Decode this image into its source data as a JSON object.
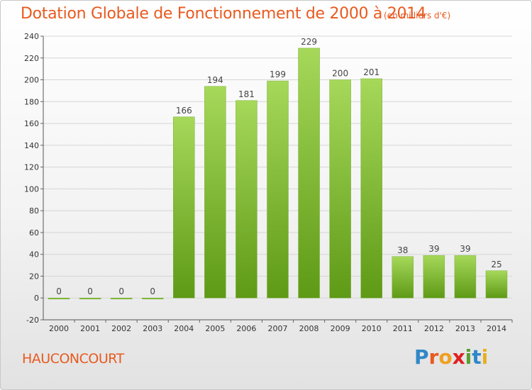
{
  "header": {
    "title": "Dotation Globale de Fonctionnement de 2000 à 2014",
    "unit": "(en milliers d'€)"
  },
  "footer": {
    "commune": "HAUCONCOURT"
  },
  "logo": {
    "text": "Proxiti",
    "letters": [
      {
        "ch": "P",
        "color": "#2f88c8"
      },
      {
        "ch": "r",
        "color": "#e85a20"
      },
      {
        "ch": "o",
        "color": "#f0a020"
      },
      {
        "ch": "x",
        "color": "#e02020"
      },
      {
        "ch": "i",
        "color": "#58a030"
      },
      {
        "ch": "t",
        "color": "#2f88c8"
      },
      {
        "ch": "i",
        "color": "#e8b020"
      }
    ]
  },
  "colors": {
    "bar_top": "#a6d85a",
    "bar_bottom": "#5e9a16",
    "title": "#e85a20",
    "grid": "#d6d6d6"
  },
  "chart_data": {
    "type": "bar",
    "categories": [
      "2000",
      "2001",
      "2002",
      "2003",
      "2004",
      "2005",
      "2006",
      "2007",
      "2008",
      "2009",
      "2010",
      "2011",
      "2012",
      "2013",
      "2014"
    ],
    "values": [
      0,
      0,
      0,
      0,
      166,
      194,
      181,
      199,
      229,
      200,
      201,
      38,
      39,
      39,
      25
    ],
    "data_labels": [
      "0",
      "0",
      "0",
      "0",
      "166",
      "194",
      "181",
      "199",
      "229",
      "200",
      "201",
      "38",
      "39",
      "39",
      "25"
    ],
    "yticks": [
      -20,
      0,
      20,
      40,
      60,
      80,
      100,
      120,
      140,
      160,
      180,
      200,
      220,
      240
    ],
    "ylim": [
      -20,
      240
    ],
    "title": "Dotation Globale de Fonctionnement de 2000 à 2014",
    "ylabel": "",
    "xlabel": "",
    "grid": true,
    "legend": "none"
  }
}
